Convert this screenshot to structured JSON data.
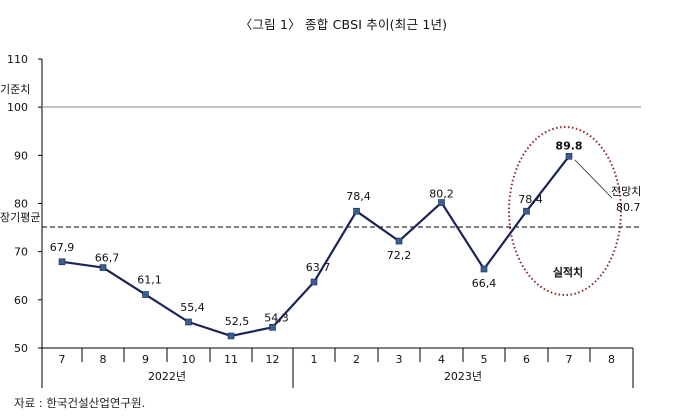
{
  "title": "〈그림 1〉 종합 CBSI 추이(최근 1년)",
  "source": "자료 : 한국건설산업연구원.",
  "colors": {
    "line": "#1c2455",
    "marker": "#3a5f8f",
    "ellipse": "#8b2a2a",
    "axis": "#000000",
    "reference": "#888888"
  },
  "chart_data": {
    "type": "line",
    "title": "〈그림 1〉 종합 CBSI 추이(최근 1년)",
    "xlabel": "",
    "ylabel": "",
    "ylim": [
      50,
      110
    ],
    "yticks": [
      50,
      60,
      70,
      80,
      90,
      100,
      110
    ],
    "grid": false,
    "categories": [
      "7",
      "8",
      "9",
      "10",
      "11",
      "12",
      "1",
      "2",
      "3",
      "4",
      "5",
      "6",
      "7",
      "8"
    ],
    "year_groups": [
      {
        "label": "2022년",
        "months": [
          "7",
          "8",
          "9",
          "10",
          "11",
          "12"
        ]
      },
      {
        "label": "2023년",
        "months": [
          "1",
          "2",
          "3",
          "4",
          "5",
          "6",
          "7",
          "8"
        ]
      }
    ],
    "series": [
      {
        "name": "실적치",
        "values": [
          67.9,
          66.7,
          61.1,
          55.4,
          52.5,
          54.3,
          63.7,
          78.4,
          72.2,
          80.2,
          66.4,
          78.4,
          89.8,
          null
        ],
        "labels": [
          "67,9",
          "66,7",
          "61,1",
          "55,4",
          "52,5",
          "54,3",
          "63,7",
          "78,4",
          "72,2",
          "80,2",
          "66,4",
          "78,4",
          "89.8",
          ""
        ]
      },
      {
        "name": "전망치",
        "values": [
          null,
          null,
          null,
          null,
          null,
          null,
          null,
          null,
          null,
          null,
          null,
          null,
          89.8,
          80.7
        ],
        "labels": [
          "80.7"
        ]
      }
    ],
    "reference_lines": [
      {
        "label": "기준치",
        "value": 100,
        "style": "solid"
      },
      {
        "label": "장기평균",
        "value": 75.2,
        "style": "dashed"
      }
    ],
    "annotations": [
      {
        "text": "실적치",
        "note": "dotted ellipse around recent months"
      },
      {
        "text": "전망치",
        "value_text": "80.7"
      }
    ]
  }
}
